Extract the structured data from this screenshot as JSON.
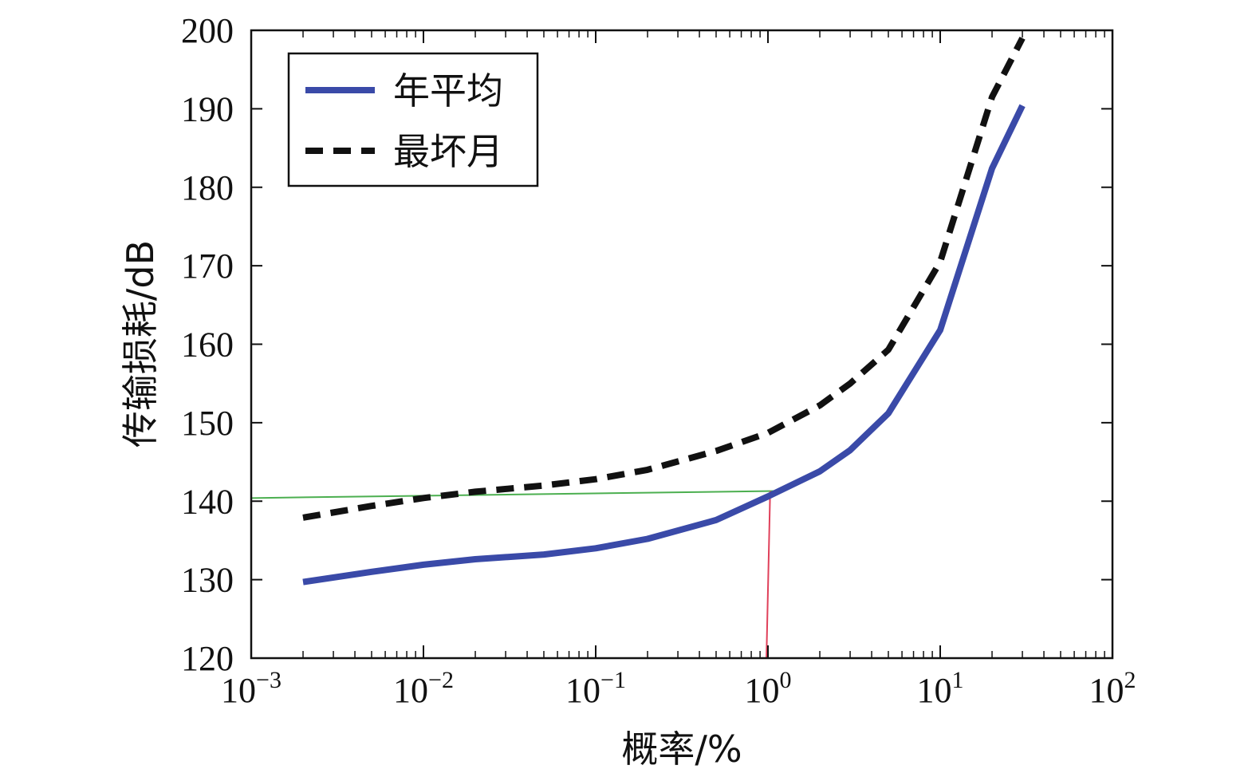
{
  "chart_data": {
    "type": "line",
    "xlabel": "概率/%",
    "ylabel": "传输损耗/dB",
    "x_scale": "log",
    "xlim": [
      0.001,
      100
    ],
    "ylim": [
      120,
      200
    ],
    "x_ticks": [
      {
        "value": 0.001,
        "base": "10",
        "exp": "−3"
      },
      {
        "value": 0.01,
        "base": "10",
        "exp": "−2"
      },
      {
        "value": 0.1,
        "base": "10",
        "exp": "−1"
      },
      {
        "value": 1,
        "base": "10",
        "exp": "0"
      },
      {
        "value": 10,
        "base": "10",
        "exp": "1"
      },
      {
        "value": 100,
        "base": "10",
        "exp": "2"
      }
    ],
    "y_ticks": [
      "120",
      "130",
      "140",
      "150",
      "160",
      "170",
      "180",
      "190",
      "200"
    ],
    "grid": false,
    "legend_position": "top-left",
    "series": [
      {
        "name": "年平均",
        "color": "#3a4aa8",
        "style": "solid",
        "x": [
          0.002,
          0.005,
          0.01,
          0.02,
          0.05,
          0.1,
          0.2,
          0.5,
          1,
          2,
          3,
          5,
          10,
          20,
          30
        ],
        "y": [
          129.7,
          131.0,
          131.9,
          132.6,
          133.2,
          134.0,
          135.2,
          137.6,
          140.6,
          143.8,
          146.5,
          151.2,
          161.8,
          182.4,
          190.4
        ]
      },
      {
        "name": "最坏月",
        "color": "#111111",
        "style": "dashed",
        "x": [
          0.002,
          0.005,
          0.01,
          0.02,
          0.05,
          0.1,
          0.2,
          0.5,
          1,
          2,
          3,
          5,
          10,
          20,
          30
        ],
        "y": [
          137.9,
          139.4,
          140.4,
          141.2,
          142.0,
          142.8,
          144.0,
          146.4,
          148.7,
          152.2,
          155.0,
          159.3,
          170.5,
          191.5,
          199.0
        ]
      }
    ],
    "annotations": [
      {
        "type": "horizontal-guide",
        "color": "#4caf50",
        "x": [
          0.001,
          1.1
        ],
        "y": [
          140.4,
          141.3
        ]
      },
      {
        "type": "vertical-guide",
        "color": "#e0405a",
        "x": [
          0.98,
          1.03
        ],
        "y": [
          120,
          141.3
        ]
      }
    ]
  }
}
